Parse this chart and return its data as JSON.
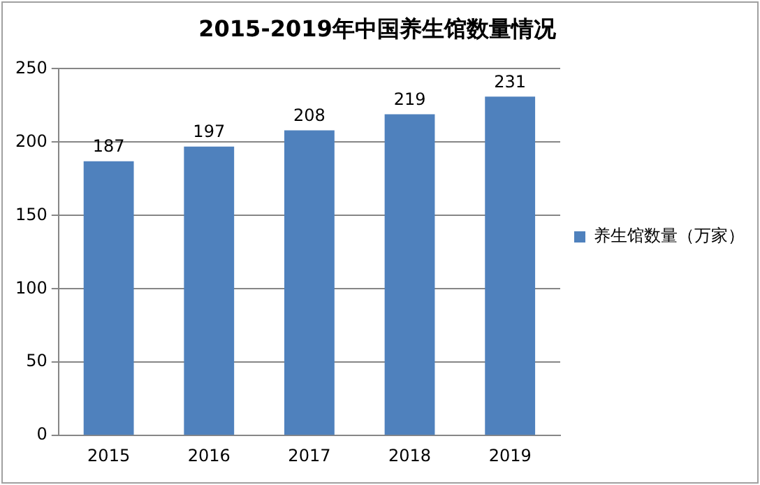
{
  "chart_data": {
    "type": "bar",
    "title": "2015-2019年中国养生馆数量情况",
    "categories": [
      "2015",
      "2016",
      "2017",
      "2018",
      "2019"
    ],
    "series": [
      {
        "name": "养生馆数量（万家）",
        "color": "#4f81bd",
        "values": [
          187,
          197,
          208,
          219,
          231
        ]
      }
    ],
    "ylim": [
      0,
      250
    ],
    "yticks": [
      0,
      50,
      100,
      150,
      200,
      250
    ],
    "grid": "y",
    "legend": "right",
    "data_labels": true
  }
}
